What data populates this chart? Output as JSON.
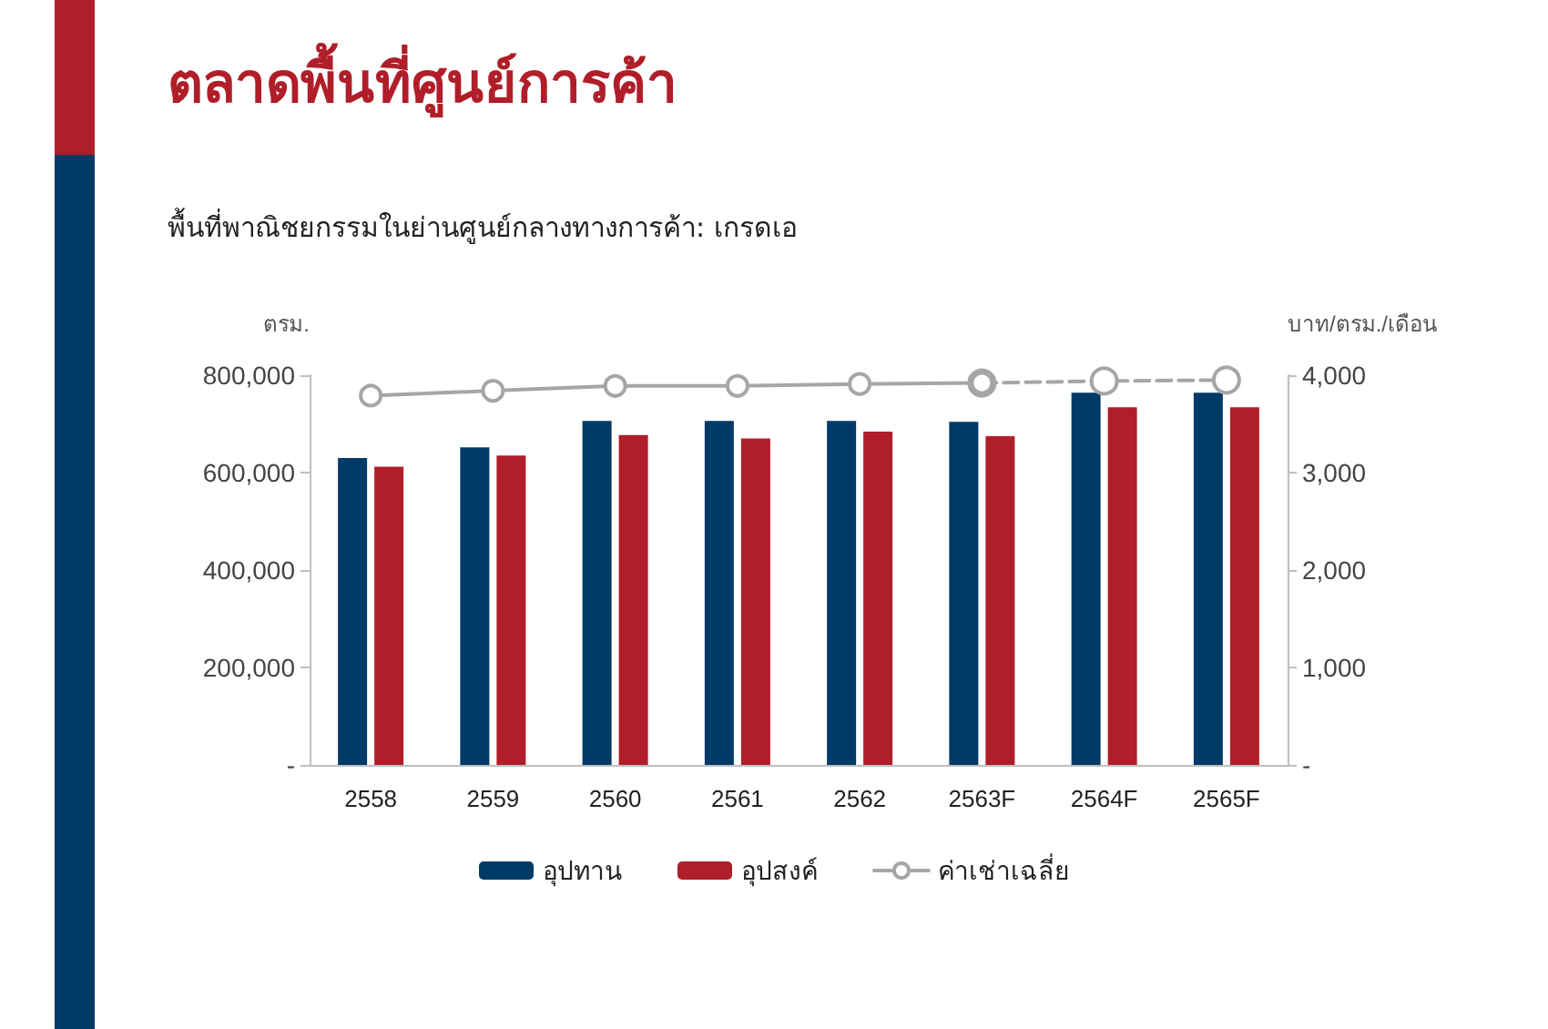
{
  "chart_data": {
    "type": "bar",
    "title": "ตลาดพื้นที่ศูนย์การค้า",
    "subtitle": "พื้นที่พาณิชยกรรมในย่านศูนย์กลางทางการค้า: เกรดเอ",
    "ylabel": "ตรม.",
    "y2label": "บาท/ตรม./เดือน",
    "categories": [
      "2558",
      "2559",
      "2560",
      "2561",
      "2562",
      "2563F",
      "2564F",
      "2565F"
    ],
    "series": [
      {
        "name": "อุปทาน",
        "color": "#003a66",
        "values": [
          630000,
          652000,
          706000,
          706000,
          706000,
          704000,
          764000,
          764000
        ]
      },
      {
        "name": "อุปสงค์",
        "color": "#b01e2a",
        "values": [
          612000,
          635000,
          677000,
          670000,
          684000,
          675000,
          734000,
          734000
        ]
      },
      {
        "name": "ค่าเช่าเฉลี่ย",
        "type": "line",
        "axis": "y2",
        "color": "#a6a6a6",
        "line_style": "solid",
        "values": [
          3790,
          3840,
          3890,
          3890,
          3910,
          3920,
          null,
          null
        ]
      },
      {
        "type": "line",
        "axis": "y2",
        "color": "#a6a6a6",
        "line_style": "dashed",
        "values": [
          null,
          null,
          null,
          null,
          null,
          3920,
          3940,
          3950
        ]
      }
    ],
    "ylim": [
      0,
      800000
    ],
    "yticks": [
      {
        "value": 0,
        "label": "-"
      },
      {
        "value": 200000,
        "label": "200,000"
      },
      {
        "value": 400000,
        "label": "400,000"
      },
      {
        "value": 600000,
        "label": "600,000"
      },
      {
        "value": 800000,
        "label": "800,000"
      }
    ],
    "y2lim": [
      0,
      4000
    ],
    "y2ticks": [
      {
        "value": 0,
        "label": "-"
      },
      {
        "value": 1000,
        "label": "1,000"
      },
      {
        "value": 2000,
        "label": "2,000"
      },
      {
        "value": 3000,
        "label": "3,000"
      },
      {
        "value": 4000,
        "label": "4,000"
      }
    ],
    "grid": false,
    "legend": "bottom",
    "marker": "circle"
  }
}
